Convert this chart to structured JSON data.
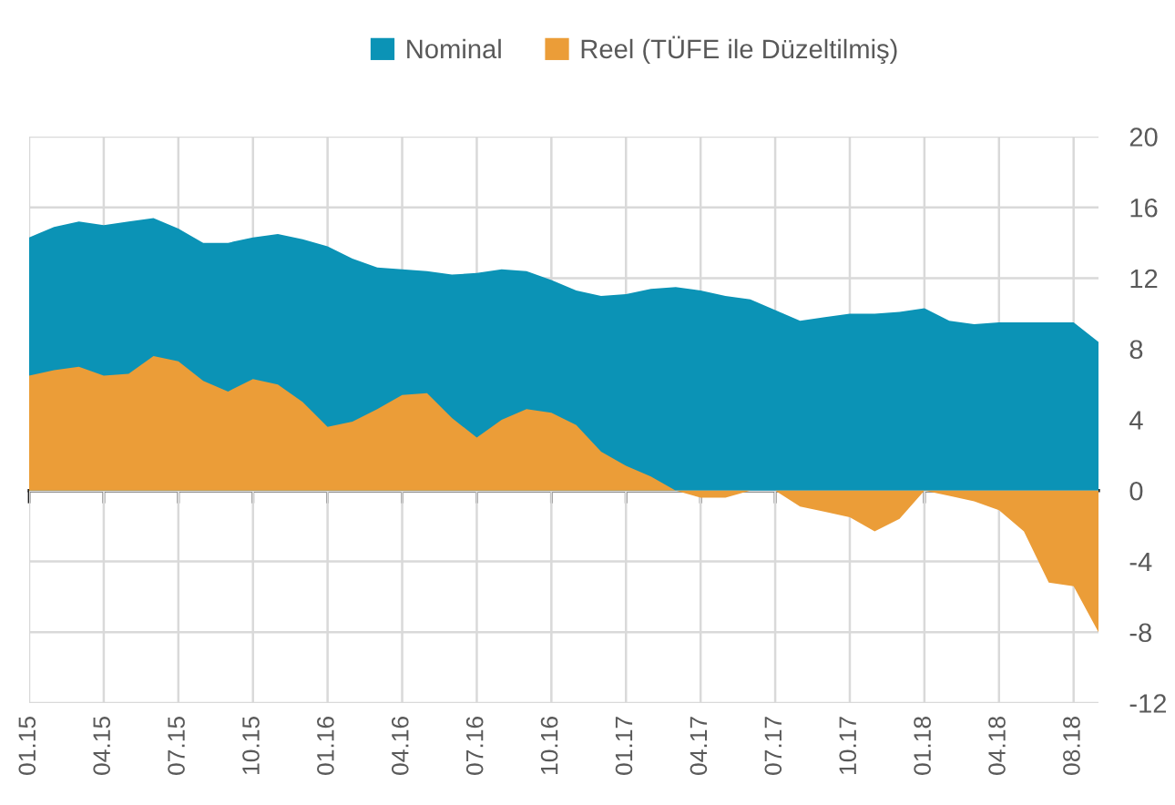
{
  "chart_data": {
    "type": "area",
    "categories": [
      "01.15",
      null,
      null,
      "04.15",
      null,
      null,
      "07.15",
      null,
      null,
      "10.15",
      null,
      null,
      "01.16",
      null,
      null,
      "04.16",
      null,
      null,
      "07.16",
      null,
      null,
      "10.16",
      null,
      null,
      "01.17",
      null,
      null,
      "04.17",
      null,
      null,
      "07.17",
      null,
      null,
      "10.17",
      null,
      null,
      "01.18",
      null,
      null,
      "04.18",
      null,
      null,
      "08.18",
      null
    ],
    "series": [
      {
        "name": "Nominal",
        "color": "#0b93b6",
        "values": [
          14.3,
          14.9,
          15.2,
          15.0,
          15.2,
          15.4,
          14.8,
          14.0,
          14.0,
          14.3,
          14.5,
          14.2,
          13.8,
          13.1,
          12.6,
          12.5,
          12.4,
          12.2,
          12.3,
          12.5,
          12.4,
          11.9,
          11.3,
          11.0,
          11.1,
          11.4,
          11.5,
          11.3,
          11.0,
          10.8,
          10.2,
          9.6,
          9.8,
          10.0,
          10.0,
          10.1,
          10.3,
          9.6,
          9.4,
          9.5,
          9.5,
          9.5,
          9.5,
          8.4
        ]
      },
      {
        "name": "Reel (TÜFE ile Düzeltilmiş)",
        "color": "#eb9d38",
        "values": [
          6.5,
          6.8,
          7.0,
          6.5,
          6.6,
          7.6,
          7.3,
          6.2,
          5.6,
          6.3,
          6.0,
          5.0,
          3.6,
          3.9,
          4.6,
          5.4,
          5.5,
          4.1,
          3.0,
          4.0,
          4.6,
          4.4,
          3.7,
          2.2,
          1.4,
          0.8,
          0.0,
          -0.4,
          -0.4,
          0.0,
          0.0,
          -0.9,
          -1.2,
          -1.5,
          -2.3,
          -1.6,
          0.0,
          -0.3,
          -0.6,
          -1.1,
          -2.3,
          -5.2,
          -5.4,
          -8.0
        ]
      }
    ],
    "ylim": [
      -12,
      20
    ],
    "yticks": [
      -12,
      -8,
      -4,
      0,
      4,
      8,
      12,
      16,
      20
    ],
    "grid": true,
    "legend": "top"
  }
}
